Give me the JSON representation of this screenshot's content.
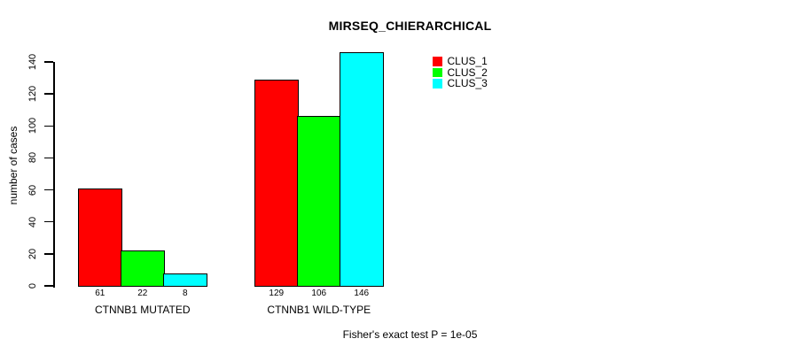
{
  "chart_data": {
    "type": "bar",
    "title": "MIRSEQ_CHIERARCHICAL",
    "ylabel": "number of cases",
    "xlabel": "",
    "categories": [
      "CTNNB1 MUTATED",
      "CTNNB1 WILD-TYPE"
    ],
    "series": [
      {
        "name": "CLUS_1",
        "color": "#ff0000",
        "values": [
          61,
          129
        ]
      },
      {
        "name": "CLUS_2",
        "color": "#00ff00",
        "values": [
          22,
          106
        ]
      },
      {
        "name": "CLUS_3",
        "color": "#00ffff",
        "values": [
          8,
          146
        ]
      }
    ],
    "yticks": [
      0,
      20,
      40,
      60,
      80,
      100,
      120,
      140
    ],
    "ylim": [
      0,
      140
    ],
    "show_bar_values": true,
    "grid": false,
    "legend_position": "top-right",
    "bar_border_color": "#000000",
    "axis_color": "#000000",
    "background_color": "#ffffff"
  },
  "footer": {
    "text": "Fisher's exact test P = 1e-05"
  }
}
